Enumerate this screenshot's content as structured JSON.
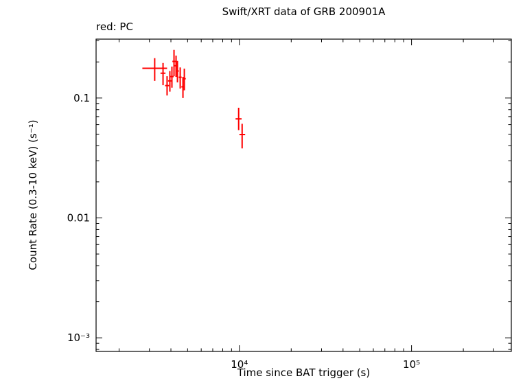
{
  "chart_data": {
    "type": "scatter",
    "title": "Swift/XRT data of GRB 200901A",
    "mode_label": "red: PC",
    "xlabel": "Time since BAT trigger (s)",
    "ylabel": "Count Rate (0.3-10 keV) (s⁻¹)",
    "color": "#ff0000",
    "x_scale": "log",
    "y_scale": "log",
    "grid": false,
    "legend": "none",
    "xlim": [
      1470,
      380000
    ],
    "ylim": [
      0.00077,
      0.31
    ],
    "x_ticks": [
      {
        "v": 10000,
        "label": "10⁴"
      },
      {
        "v": 100000,
        "label": "10⁵"
      }
    ],
    "y_ticks": [
      {
        "v": 0.1,
        "label": "0.1"
      },
      {
        "v": 0.01,
        "label": "0.01"
      },
      {
        "v": 0.001,
        "label": "10⁻³"
      }
    ],
    "series": [
      {
        "name": "PC",
        "color": "#ff0000",
        "points": [
          {
            "t": 3220,
            "tlo": 2730,
            "thi": 3800,
            "r": 0.177,
            "rlo": 0.139,
            "rhi": 0.215
          },
          {
            "t": 3600,
            "tlo": 3480,
            "thi": 3720,
            "r": 0.161,
            "rlo": 0.128,
            "rhi": 0.196
          },
          {
            "t": 3800,
            "tlo": 3700,
            "thi": 3900,
            "r": 0.127,
            "rlo": 0.105,
            "rhi": 0.152
          },
          {
            "t": 3944,
            "tlo": 3850,
            "thi": 4040,
            "r": 0.139,
            "rlo": 0.113,
            "rhi": 0.168
          },
          {
            "t": 4055,
            "tlo": 3960,
            "thi": 4150,
            "r": 0.151,
            "rlo": 0.122,
            "rhi": 0.183
          },
          {
            "t": 4169,
            "tlo": 4080,
            "thi": 4260,
            "r": 0.202,
            "rlo": 0.152,
            "rhi": 0.252
          },
          {
            "t": 4285,
            "tlo": 4200,
            "thi": 4370,
            "r": 0.186,
            "rlo": 0.15,
            "rhi": 0.226
          },
          {
            "t": 4365,
            "tlo": 4280,
            "thi": 4450,
            "r": 0.168,
            "rlo": 0.135,
            "rhi": 0.204
          },
          {
            "t": 4529,
            "tlo": 4440,
            "thi": 4620,
            "r": 0.149,
            "rlo": 0.12,
            "rhi": 0.18
          },
          {
            "t": 4699,
            "tlo": 4600,
            "thi": 4800,
            "r": 0.124,
            "rlo": 0.1,
            "rhi": 0.15
          },
          {
            "t": 4786,
            "tlo": 4690,
            "thi": 4880,
            "r": 0.145,
            "rlo": 0.116,
            "rhi": 0.176
          },
          {
            "t": 9900,
            "tlo": 9500,
            "thi": 10300,
            "r": 0.067,
            "rlo": 0.054,
            "rhi": 0.083
          },
          {
            "t": 10370,
            "tlo": 10000,
            "thi": 10800,
            "r": 0.0496,
            "rlo": 0.038,
            "rhi": 0.061
          }
        ]
      }
    ]
  }
}
